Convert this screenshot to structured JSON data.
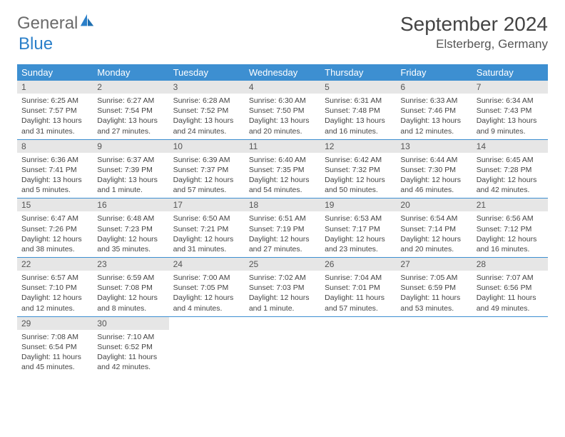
{
  "logo": {
    "text_gray": "General",
    "text_blue": "Blue"
  },
  "title": "September 2024",
  "location": "Elsterberg, Germany",
  "colors": {
    "header_bg": "#3d8fd1",
    "header_text": "#ffffff",
    "daynum_bg": "#e6e6e6",
    "row_border": "#3d8fd1",
    "body_text": "#444444",
    "logo_gray": "#6b6b6b",
    "logo_blue": "#2a7fc9"
  },
  "weekdays": [
    "Sunday",
    "Monday",
    "Tuesday",
    "Wednesday",
    "Thursday",
    "Friday",
    "Saturday"
  ],
  "days": [
    {
      "n": "1",
      "sr": "6:25 AM",
      "ss": "7:57 PM",
      "dl": "13 hours and 31 minutes."
    },
    {
      "n": "2",
      "sr": "6:27 AM",
      "ss": "7:54 PM",
      "dl": "13 hours and 27 minutes."
    },
    {
      "n": "3",
      "sr": "6:28 AM",
      "ss": "7:52 PM",
      "dl": "13 hours and 24 minutes."
    },
    {
      "n": "4",
      "sr": "6:30 AM",
      "ss": "7:50 PM",
      "dl": "13 hours and 20 minutes."
    },
    {
      "n": "5",
      "sr": "6:31 AM",
      "ss": "7:48 PM",
      "dl": "13 hours and 16 minutes."
    },
    {
      "n": "6",
      "sr": "6:33 AM",
      "ss": "7:46 PM",
      "dl": "13 hours and 12 minutes."
    },
    {
      "n": "7",
      "sr": "6:34 AM",
      "ss": "7:43 PM",
      "dl": "13 hours and 9 minutes."
    },
    {
      "n": "8",
      "sr": "6:36 AM",
      "ss": "7:41 PM",
      "dl": "13 hours and 5 minutes."
    },
    {
      "n": "9",
      "sr": "6:37 AM",
      "ss": "7:39 PM",
      "dl": "13 hours and 1 minute."
    },
    {
      "n": "10",
      "sr": "6:39 AM",
      "ss": "7:37 PM",
      "dl": "12 hours and 57 minutes."
    },
    {
      "n": "11",
      "sr": "6:40 AM",
      "ss": "7:35 PM",
      "dl": "12 hours and 54 minutes."
    },
    {
      "n": "12",
      "sr": "6:42 AM",
      "ss": "7:32 PM",
      "dl": "12 hours and 50 minutes."
    },
    {
      "n": "13",
      "sr": "6:44 AM",
      "ss": "7:30 PM",
      "dl": "12 hours and 46 minutes."
    },
    {
      "n": "14",
      "sr": "6:45 AM",
      "ss": "7:28 PM",
      "dl": "12 hours and 42 minutes."
    },
    {
      "n": "15",
      "sr": "6:47 AM",
      "ss": "7:26 PM",
      "dl": "12 hours and 38 minutes."
    },
    {
      "n": "16",
      "sr": "6:48 AM",
      "ss": "7:23 PM",
      "dl": "12 hours and 35 minutes."
    },
    {
      "n": "17",
      "sr": "6:50 AM",
      "ss": "7:21 PM",
      "dl": "12 hours and 31 minutes."
    },
    {
      "n": "18",
      "sr": "6:51 AM",
      "ss": "7:19 PM",
      "dl": "12 hours and 27 minutes."
    },
    {
      "n": "19",
      "sr": "6:53 AM",
      "ss": "7:17 PM",
      "dl": "12 hours and 23 minutes."
    },
    {
      "n": "20",
      "sr": "6:54 AM",
      "ss": "7:14 PM",
      "dl": "12 hours and 20 minutes."
    },
    {
      "n": "21",
      "sr": "6:56 AM",
      "ss": "7:12 PM",
      "dl": "12 hours and 16 minutes."
    },
    {
      "n": "22",
      "sr": "6:57 AM",
      "ss": "7:10 PM",
      "dl": "12 hours and 12 minutes."
    },
    {
      "n": "23",
      "sr": "6:59 AM",
      "ss": "7:08 PM",
      "dl": "12 hours and 8 minutes."
    },
    {
      "n": "24",
      "sr": "7:00 AM",
      "ss": "7:05 PM",
      "dl": "12 hours and 4 minutes."
    },
    {
      "n": "25",
      "sr": "7:02 AM",
      "ss": "7:03 PM",
      "dl": "12 hours and 1 minute."
    },
    {
      "n": "26",
      "sr": "7:04 AM",
      "ss": "7:01 PM",
      "dl": "11 hours and 57 minutes."
    },
    {
      "n": "27",
      "sr": "7:05 AM",
      "ss": "6:59 PM",
      "dl": "11 hours and 53 minutes."
    },
    {
      "n": "28",
      "sr": "7:07 AM",
      "ss": "6:56 PM",
      "dl": "11 hours and 49 minutes."
    },
    {
      "n": "29",
      "sr": "7:08 AM",
      "ss": "6:54 PM",
      "dl": "11 hours and 45 minutes."
    },
    {
      "n": "30",
      "sr": "7:10 AM",
      "ss": "6:52 PM",
      "dl": "11 hours and 42 minutes."
    }
  ],
  "labels": {
    "sunrise": "Sunrise:",
    "sunset": "Sunset:",
    "daylight": "Daylight:"
  },
  "first_weekday_index": 0,
  "total_cells": 35
}
